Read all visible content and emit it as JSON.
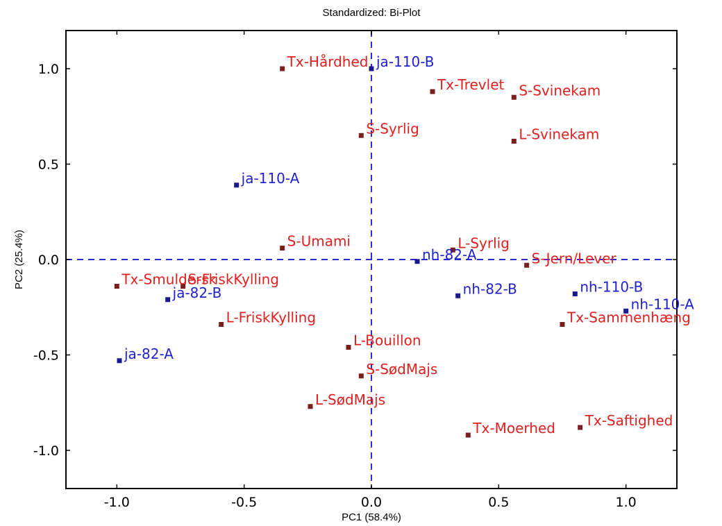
{
  "chart_data": {
    "type": "scatter",
    "title": "Standardized: Bi-Plot",
    "xlabel": "PC1 (58.4%)",
    "ylabel": "PC2 (25.4%)",
    "xlim": [
      -1.2,
      1.2
    ],
    "ylim": [
      -1.2,
      1.2
    ],
    "xticks": [
      -1.0,
      -0.5,
      0.0,
      0.5,
      1.0
    ],
    "yticks": [
      -1.0,
      -0.5,
      0.0,
      0.5,
      1.0
    ],
    "xtick_labels": [
      "-1.0",
      "-0.5",
      "0.0",
      "0.5",
      "1.0"
    ],
    "ytick_labels": [
      "-1.0",
      "-0.5",
      "0.0",
      "0.5",
      "1.0"
    ],
    "grid": false,
    "reference_lines": {
      "x": 0.0,
      "y": 0.0,
      "color": "#2a2ad8",
      "style": "dashed"
    },
    "colors": {
      "samples": "#1f1fd0",
      "samples_marker": "#1a1a8c",
      "attributes": "#e02020",
      "attributes_marker": "#7a1f1f"
    },
    "series": [
      {
        "group": "samples",
        "points": [
          {
            "label": "ja-110-B",
            "x": 0.0,
            "y": 1.0
          },
          {
            "label": "ja-110-A",
            "x": -0.53,
            "y": 0.39
          },
          {
            "label": "nh-82-A",
            "x": 0.18,
            "y": -0.01
          },
          {
            "label": "nh-82-B",
            "x": 0.34,
            "y": -0.19
          },
          {
            "label": "nh-110-B",
            "x": 0.8,
            "y": -0.18
          },
          {
            "label": "nh-110-A",
            "x": 1.0,
            "y": -0.27
          },
          {
            "label": "ja-82-B",
            "x": -0.8,
            "y": -0.21
          },
          {
            "label": "ja-82-A",
            "x": -0.99,
            "y": -0.53
          }
        ]
      },
      {
        "group": "attributes",
        "points": [
          {
            "label": "Tx-Hårdhed",
            "x": -0.35,
            "y": 1.0
          },
          {
            "label": "Tx-Trevlet",
            "x": 0.24,
            "y": 0.88
          },
          {
            "label": "S-Svinekam",
            "x": 0.56,
            "y": 0.85
          },
          {
            "label": "S-Syrlig",
            "x": -0.04,
            "y": 0.65
          },
          {
            "label": "L-Svinekam",
            "x": 0.56,
            "y": 0.62
          },
          {
            "label": "S-Umami",
            "x": -0.35,
            "y": 0.06
          },
          {
            "label": "L-Syrlig",
            "x": 0.32,
            "y": 0.05
          },
          {
            "label": "S-Jern/Lever",
            "x": 0.61,
            "y": -0.03
          },
          {
            "label": "Tx-Smuldersk",
            "x": -1.0,
            "y": -0.14
          },
          {
            "label": "S-FriskKylling",
            "x": -0.74,
            "y": -0.14
          },
          {
            "label": "L-FriskKylling",
            "x": -0.59,
            "y": -0.34
          },
          {
            "label": "Tx-Sammenhæng",
            "x": 0.75,
            "y": -0.34
          },
          {
            "label": "L-Bouillon",
            "x": -0.09,
            "y": -0.46
          },
          {
            "label": "S-SødMajs",
            "x": -0.04,
            "y": -0.61
          },
          {
            "label": "L-SødMajs",
            "x": -0.24,
            "y": -0.77
          },
          {
            "label": "Tx-Moerhed",
            "x": 0.38,
            "y": -0.92
          },
          {
            "label": "Tx-Saftighed",
            "x": 0.82,
            "y": -0.88
          }
        ]
      }
    ]
  }
}
